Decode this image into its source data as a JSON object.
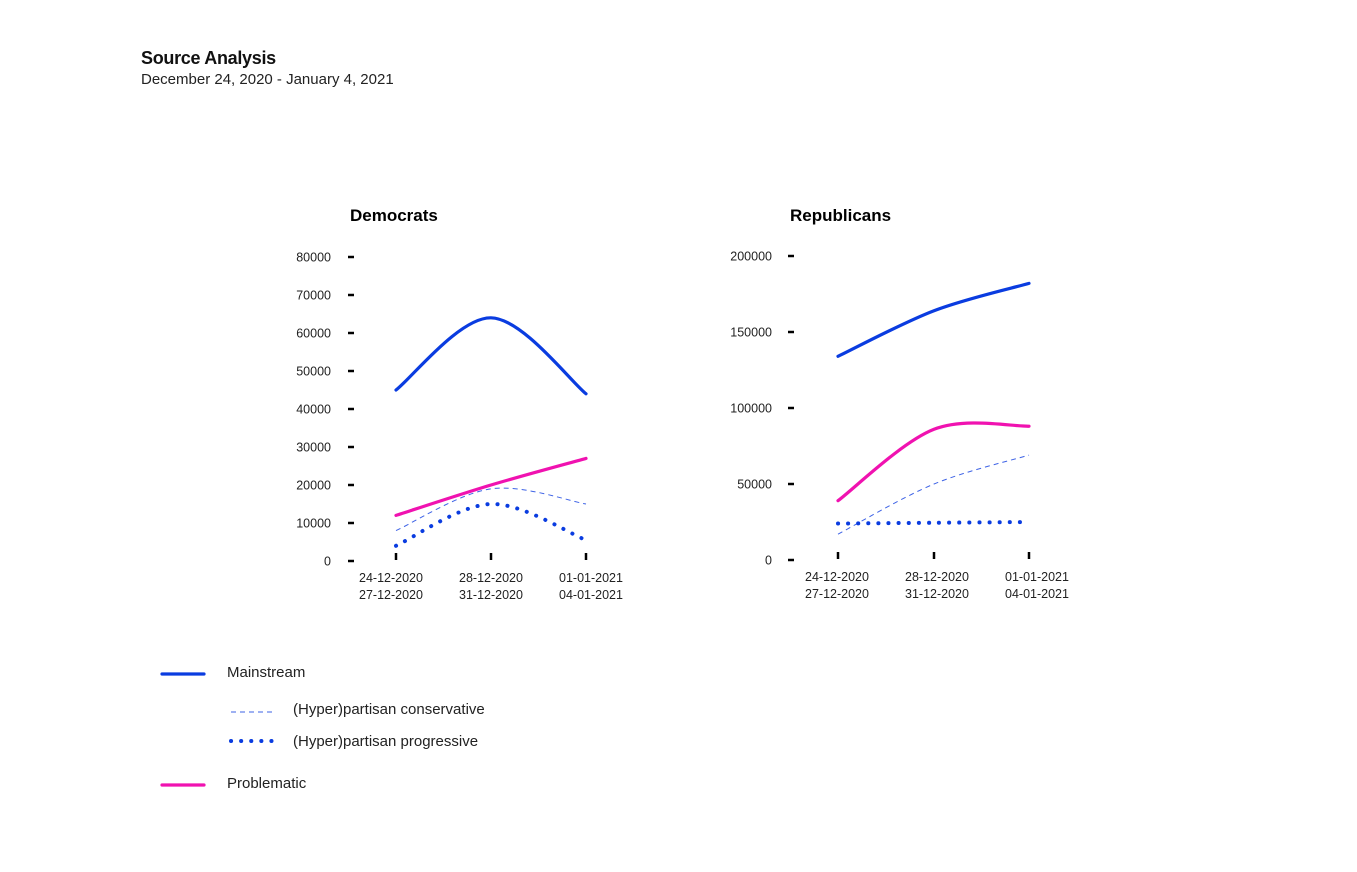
{
  "header": {
    "title": "Source Analysis",
    "subtitle": "December 24, 2020 - January 4, 2021"
  },
  "colors": {
    "mainstream": "#0a3ce0",
    "partisan": "#3e63e6",
    "problematic": "#f012b0",
    "axis": "#000000"
  },
  "chart_data": [
    {
      "type": "line",
      "title": "Democrats",
      "categories": [
        [
          "24-12-2020",
          "27-12-2020"
        ],
        [
          "28-12-2020",
          "31-12-2020"
        ],
        [
          "01-01-2021",
          "04-01-2021"
        ]
      ],
      "yticks": [
        0,
        10000,
        20000,
        30000,
        40000,
        50000,
        60000,
        70000,
        80000
      ],
      "ylim": [
        0,
        80000
      ],
      "series": [
        {
          "name": "Mainstream",
          "key": "mainstream",
          "values": [
            45000,
            64000,
            44000
          ]
        },
        {
          "name": "(Hyper)partisan conservative",
          "key": "conservative",
          "values": [
            8000,
            19000,
            15000
          ]
        },
        {
          "name": "(Hyper)partisan progressive",
          "key": "progressive",
          "values": [
            4000,
            15000,
            5500
          ]
        },
        {
          "name": "Problematic",
          "key": "problematic",
          "values": [
            12000,
            20000,
            27000
          ]
        }
      ]
    },
    {
      "type": "line",
      "title": "Republicans",
      "categories": [
        [
          "24-12-2020",
          "27-12-2020"
        ],
        [
          "28-12-2020",
          "31-12-2020"
        ],
        [
          "01-01-2021",
          "04-01-2021"
        ]
      ],
      "yticks": [
        0,
        50000,
        100000,
        150000,
        200000
      ],
      "ylim": [
        0,
        200000
      ],
      "series": [
        {
          "name": "Mainstream",
          "key": "mainstream",
          "values": [
            134000,
            164000,
            182000
          ]
        },
        {
          "name": "(Hyper)partisan conservative",
          "key": "conservative",
          "values": [
            17000,
            50000,
            69000
          ]
        },
        {
          "name": "(Hyper)partisan progressive",
          "key": "progressive",
          "values": [
            24000,
            24500,
            25000
          ]
        },
        {
          "name": "Problematic",
          "key": "problematic",
          "values": [
            39000,
            86000,
            88000
          ]
        }
      ]
    }
  ],
  "legend": [
    {
      "key": "mainstream",
      "label": "Mainstream"
    },
    {
      "key": "conservative",
      "label": "(Hyper)partisan conservative"
    },
    {
      "key": "progressive",
      "label": "(Hyper)partisan progressive"
    },
    {
      "key": "problematic",
      "label": "Problematic"
    }
  ]
}
